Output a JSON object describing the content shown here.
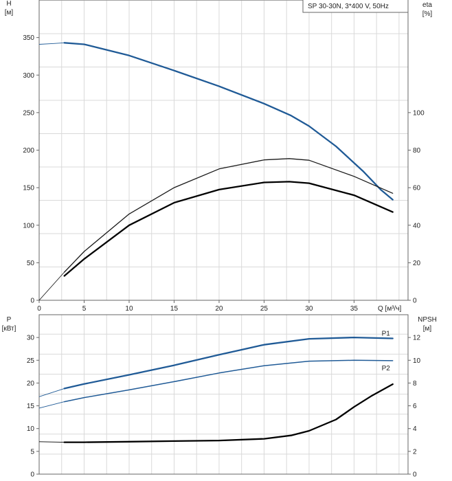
{
  "chart_data": [
    {
      "type": "line",
      "panel": "head-efficiency",
      "title": "SP 30-30N, 3*400 V, 50Hz",
      "left_axis": {
        "label": "H",
        "unit": "[м]",
        "ylim": [
          0,
          400
        ],
        "ticks": [
          0,
          50,
          100,
          150,
          200,
          250,
          300,
          350
        ]
      },
      "right_axis": {
        "label": "eta",
        "unit": "[%]",
        "ylim": [
          0,
          160
        ],
        "ticks": [
          0,
          20,
          40,
          60,
          80,
          100
        ]
      },
      "x_axis": {
        "label": "Q [м³/ч]",
        "xlim": [
          0,
          41
        ],
        "ticks": [
          0,
          5,
          10,
          15,
          20,
          25,
          30,
          35
        ]
      },
      "grid": true,
      "series": [
        {
          "axis": "left",
          "color": "#1f5a96",
          "points": [
            [
              0,
              341
            ],
            [
              1.5,
              342
            ],
            [
              2.8,
              343
            ],
            [
              5,
              341
            ],
            [
              10,
              326
            ],
            [
              15,
              306
            ],
            [
              20,
              285
            ],
            [
              25,
              262
            ],
            [
              28,
              246
            ],
            [
              30,
              232
            ],
            [
              33,
              205
            ],
            [
              36,
              172
            ],
            [
              38,
              147
            ],
            [
              39.3,
              134
            ]
          ]
        },
        {
          "axis": "right",
          "color": "#1a1a1a",
          "points": [
            [
              0,
              0
            ],
            [
              2.8,
              15
            ],
            [
              5,
              26
            ],
            [
              10,
              46
            ],
            [
              15,
              60
            ],
            [
              20,
              70
            ],
            [
              25,
              74.8
            ],
            [
              27.8,
              75.5
            ],
            [
              30,
              74.6
            ],
            [
              35,
              66
            ],
            [
              39.3,
              57
            ]
          ]
        },
        {
          "axis": "right",
          "color": "#000000",
          "points": [
            [
              2.8,
              13
            ],
            [
              5,
              22
            ],
            [
              10,
              40
            ],
            [
              15,
              52
            ],
            [
              20,
              59
            ],
            [
              25,
              62.8
            ],
            [
              27.8,
              63.2
            ],
            [
              30,
              62.4
            ],
            [
              35,
              56
            ],
            [
              39.3,
              47
            ]
          ]
        }
      ]
    },
    {
      "type": "line",
      "panel": "power-npsh",
      "left_axis": {
        "label": "P",
        "unit": "[кВт]",
        "ylim": [
          0,
          35
        ],
        "ticks": [
          0,
          5,
          10,
          15,
          20,
          25,
          30
        ]
      },
      "right_axis": {
        "label": "NPSH",
        "unit": "[м]",
        "ylim": [
          0,
          14
        ],
        "ticks": [
          0,
          2,
          4,
          6,
          8,
          10,
          12
        ]
      },
      "x_axis": {
        "xlim": [
          0,
          41
        ]
      },
      "grid": true,
      "series": [
        {
          "name": "P1",
          "axis": "left",
          "color": "#1f5a96",
          "points": [
            [
              0,
              17
            ],
            [
              2.8,
              18.8
            ],
            [
              5,
              19.8
            ],
            [
              10,
              21.8
            ],
            [
              15,
              23.9
            ],
            [
              20,
              26.2
            ],
            [
              25,
              28.4
            ],
            [
              30,
              29.7
            ],
            [
              35,
              30.0
            ],
            [
              39.3,
              29.8
            ]
          ]
        },
        {
          "name": "P2",
          "axis": "left",
          "color": "#1f5a96",
          "points": [
            [
              0,
              14.5
            ],
            [
              2.8,
              15.9
            ],
            [
              5,
              16.8
            ],
            [
              10,
              18.5
            ],
            [
              15,
              20.3
            ],
            [
              20,
              22.2
            ],
            [
              25,
              23.8
            ],
            [
              30,
              24.8
            ],
            [
              35,
              25.0
            ],
            [
              39.3,
              24.9
            ]
          ]
        },
        {
          "axis": "right",
          "color": "#000000",
          "points": [
            [
              0,
              2.85
            ],
            [
              2.8,
              2.8
            ],
            [
              5,
              2.8
            ],
            [
              10,
              2.85
            ],
            [
              15,
              2.9
            ],
            [
              20,
              2.95
            ],
            [
              25,
              3.1
            ],
            [
              28,
              3.4
            ],
            [
              30,
              3.8
            ],
            [
              33,
              4.8
            ],
            [
              35,
              5.9
            ],
            [
              37,
              6.9
            ],
            [
              39.3,
              7.9
            ]
          ]
        }
      ]
    }
  ]
}
